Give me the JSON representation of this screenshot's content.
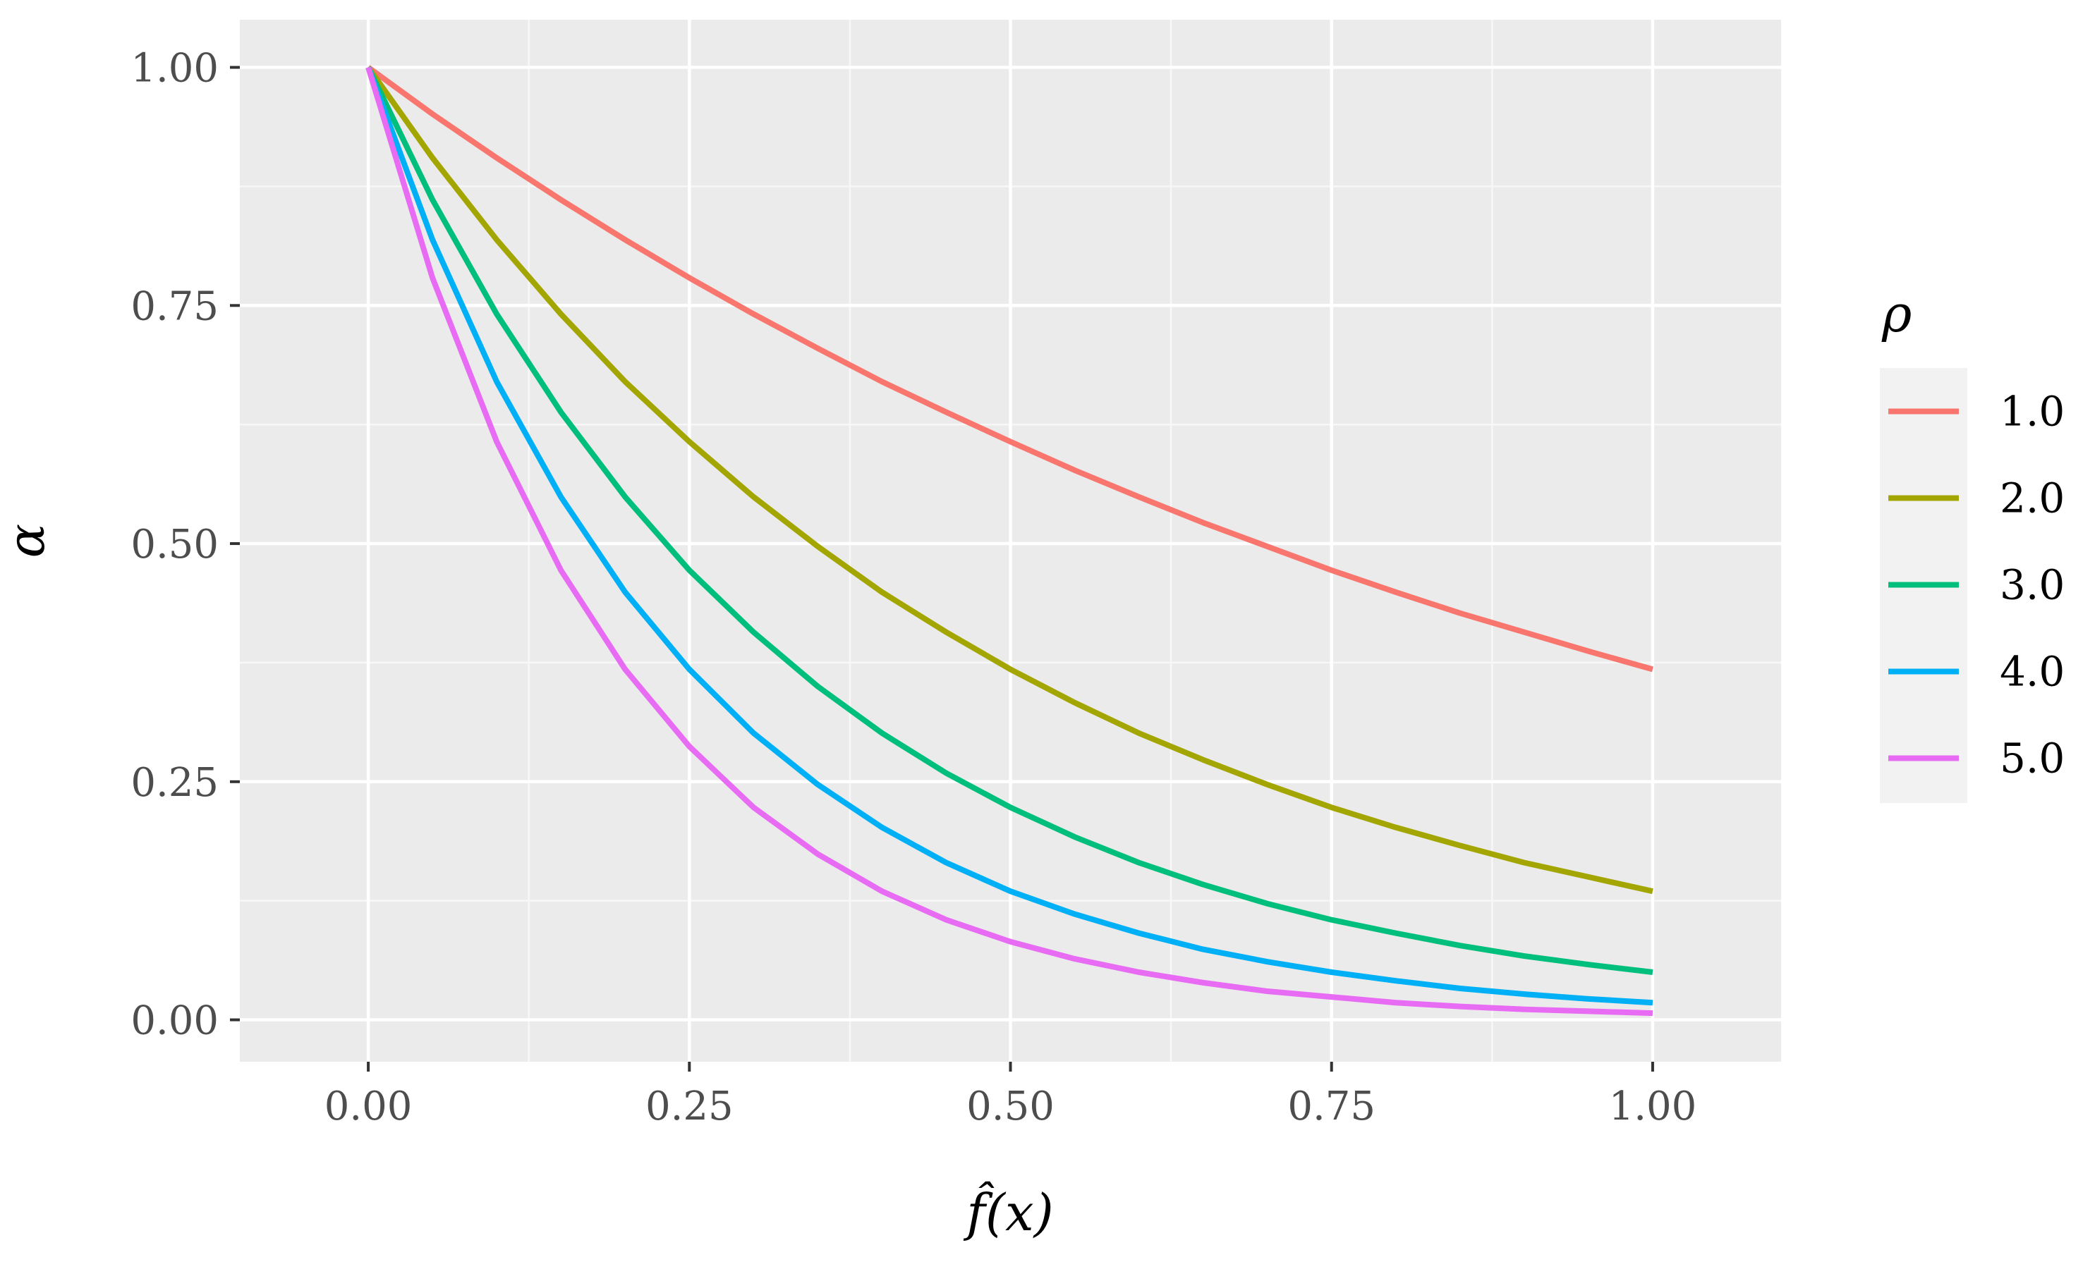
{
  "chart_data": {
    "type": "line",
    "title": "",
    "xlabel": "f̂(x)",
    "ylabel": "α",
    "xlim": [
      -0.1,
      1.1
    ],
    "ylim": [
      -0.044,
      1.05
    ],
    "x_ticks": [
      0.0,
      0.25,
      0.5,
      0.75,
      1.0
    ],
    "x_tick_labels": [
      "0.00",
      "0.25",
      "0.50",
      "0.75",
      "1.00"
    ],
    "y_ticks": [
      0.0,
      0.25,
      0.5,
      0.75,
      1.0
    ],
    "y_tick_labels": [
      "0.00",
      "0.25",
      "0.50",
      "0.75",
      "1.00"
    ],
    "x_minor_ticks": [
      0.125,
      0.375,
      0.625,
      0.875
    ],
    "y_minor_ticks": [
      0.125,
      0.375,
      0.625,
      0.875
    ],
    "grid": true,
    "legend": {
      "title": "ρ",
      "placement": "right"
    },
    "x": [
      0.0,
      0.05,
      0.1,
      0.15,
      0.2,
      0.25,
      0.3,
      0.35,
      0.4,
      0.45,
      0.5,
      0.55,
      0.6,
      0.65,
      0.7,
      0.75,
      0.8,
      0.85,
      0.9,
      0.95,
      1.0
    ],
    "series": [
      {
        "name": "1.0",
        "color": "#F8766D",
        "values": [
          1.0,
          0.951,
          0.905,
          0.861,
          0.819,
          0.779,
          0.741,
          0.705,
          0.67,
          0.638,
          0.607,
          0.577,
          0.549,
          0.522,
          0.497,
          0.472,
          0.449,
          0.427,
          0.407,
          0.387,
          0.368
        ]
      },
      {
        "name": "2.0",
        "color": "#A3A500",
        "values": [
          1.0,
          0.905,
          0.819,
          0.741,
          0.67,
          0.607,
          0.549,
          0.497,
          0.449,
          0.407,
          0.368,
          0.333,
          0.301,
          0.273,
          0.247,
          0.223,
          0.202,
          0.183,
          0.165,
          0.15,
          0.135
        ]
      },
      {
        "name": "3.0",
        "color": "#00BF7D",
        "values": [
          1.0,
          0.861,
          0.741,
          0.638,
          0.549,
          0.472,
          0.407,
          0.35,
          0.301,
          0.259,
          0.223,
          0.192,
          0.165,
          0.142,
          0.122,
          0.105,
          0.091,
          0.078,
          0.067,
          0.058,
          0.05
        ]
      },
      {
        "name": "4.0",
        "color": "#00B0F6",
        "values": [
          1.0,
          0.819,
          0.67,
          0.549,
          0.449,
          0.368,
          0.301,
          0.247,
          0.202,
          0.165,
          0.135,
          0.111,
          0.091,
          0.074,
          0.061,
          0.05,
          0.041,
          0.033,
          0.027,
          0.022,
          0.018
        ]
      },
      {
        "name": "5.0",
        "color": "#E76BF3",
        "values": [
          1.0,
          0.779,
          0.607,
          0.472,
          0.368,
          0.287,
          0.223,
          0.174,
          0.135,
          0.105,
          0.082,
          0.064,
          0.05,
          0.039,
          0.03,
          0.024,
          0.018,
          0.014,
          0.011,
          0.009,
          0.007
        ]
      }
    ]
  },
  "colors": {
    "panel_background": "#EBEBEB",
    "grid_major": "#FFFFFF",
    "grid_minor": "#F7F7F7",
    "tick_label": "#4D4D4D",
    "legend_key_background": "#F2F2F2",
    "axis_tick": "#333333"
  }
}
